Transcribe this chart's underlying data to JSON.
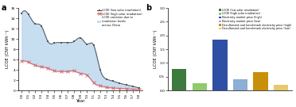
{
  "panel_a": {
    "years": [
      2000,
      2001,
      2002,
      2003,
      2004,
      2005,
      2006,
      2007,
      2008,
      2009,
      2010,
      2011,
      2012,
      2013,
      2014,
      2015,
      2016,
      2017,
      2018
    ],
    "lcoe_low": [
      15.0,
      14.8,
      13.0,
      12.5,
      9.5,
      9.2,
      9.3,
      9.3,
      9.5,
      10.2,
      9.0,
      8.8,
      4.0,
      2.2,
      1.8,
      1.4,
      1.1,
      0.8,
      0.5
    ],
    "lcoe_high": [
      5.7,
      5.5,
      4.9,
      4.6,
      4.3,
      3.8,
      3.7,
      3.7,
      3.8,
      3.3,
      3.0,
      1.5,
      0.9,
      0.6,
      0.5,
      0.4,
      0.3,
      0.25,
      0.18
    ],
    "ylabel": "LCOE (CNY kWh⁻¹)",
    "xlabel": "Year",
    "panel_label": "a",
    "ylim": [
      0,
      16
    ],
    "yticks": [
      0,
      2,
      4,
      6,
      8,
      10,
      12,
      14,
      16
    ],
    "fill_color": "#bdd7ee",
    "fill_alpha": 0.85,
    "line_low_color": "#555555",
    "line_high_color": "#d95f5f",
    "legend_fill": "LCOE variation due to\nirradiation levels\nacross China",
    "legend_low": "LCOE (low solar irradiation)",
    "legend_high": "LCOE (high solar irradiation)"
  },
  "panel_b": {
    "values": [
      0.78,
      0.27,
      1.85,
      0.42,
      0.68,
      0.22
    ],
    "colors": [
      "#3d7a3d",
      "#8fca6e",
      "#2e4fa3",
      "#8cafd4",
      "#c8900a",
      "#e8c86e"
    ],
    "ylabel": "LCOE (CNY kWh⁻¹)",
    "panel_label": "b",
    "ylim": [
      0,
      3.0
    ],
    "yticks": [
      0.0,
      0.5,
      1.0,
      1.5,
      2.0,
      2.5,
      3.0
    ],
    "legend_entries": [
      [
        "LCOE (low solar irradiation)",
        "#3d7a3d"
      ],
      [
        "LCOE (high solar irradiation)",
        "#8fca6e"
      ],
      [
        "Electricity market price (high)",
        "#2e4fa3"
      ],
      [
        "Electricity market price (low)",
        "#8cafd4"
      ],
      [
        "Desulfurized coal benchmark electricity price (high)",
        "#c8900a"
      ],
      [
        "Desulfurized coal benchmark electricity price (low)",
        "#e8c86e"
      ]
    ]
  }
}
